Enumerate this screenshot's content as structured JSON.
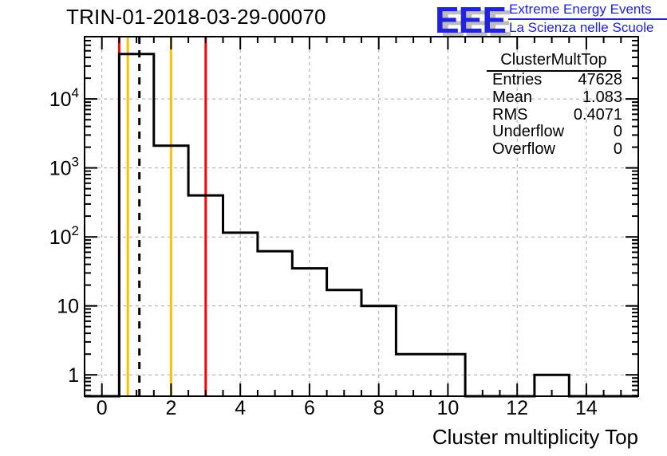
{
  "title": "TRIN-01-2018-03-29-00070",
  "logo": {
    "acronym": "EEE",
    "line1": "Extreme Energy Events",
    "line2": "La Scienza nelle Scuole",
    "color": "#2222dd",
    "shadow_color": "#bdbdbd"
  },
  "stats": {
    "title": "ClusterMultTop",
    "rows": [
      {
        "label": "Entries",
        "value": "47628"
      },
      {
        "label": "Mean",
        "value": "1.083"
      },
      {
        "label": "RMS",
        "value": "0.4071"
      },
      {
        "label": "Underflow",
        "value": "0"
      },
      {
        "label": "Overflow",
        "value": "0"
      }
    ]
  },
  "chart_data": {
    "type": "bar",
    "subtype": "step-histogram",
    "title": "TRIN-01-2018-03-29-00070",
    "xlabel": "Cluster multiplicity Top",
    "ylabel": "",
    "y_scale": "log",
    "grid": true,
    "grid_color": "#aaaaaa",
    "line_color": "#000000",
    "xlim": [
      -0.5,
      15.5
    ],
    "ylim_log": [
      0.49,
      80000
    ],
    "bin_width": 1,
    "bin_centers": [
      0,
      1,
      2,
      3,
      4,
      5,
      6,
      7,
      8,
      9,
      10,
      11,
      12,
      13,
      14,
      15
    ],
    "values": [
      0,
      44900,
      2100,
      400,
      115,
      62,
      35,
      17,
      10,
      2,
      2,
      0,
      0,
      1,
      0,
      0
    ],
    "x_major_ticks": [
      0,
      2,
      4,
      6,
      8,
      10,
      12,
      14
    ],
    "x_tick_labels": [
      "0",
      "2",
      "4",
      "6",
      "8",
      "10",
      "12",
      "14"
    ],
    "x_minor_step": 0.5,
    "y_major_ticks": [
      1,
      10,
      100,
      1000,
      10000
    ],
    "y_tick_labels": [
      "1",
      "10",
      "10^2",
      "10^3",
      "10^4"
    ],
    "marker_lines": [
      {
        "x": 0.5,
        "color": "#ff0000",
        "style": "solid"
      },
      {
        "x": 0.75,
        "color": "#ffc000",
        "style": "solid"
      },
      {
        "x": 1.083,
        "color": "#000000",
        "style": "dashed"
      },
      {
        "x": 2,
        "color": "#ffc000",
        "style": "solid"
      },
      {
        "x": 3,
        "color": "#ff0000",
        "style": "solid"
      }
    ]
  }
}
